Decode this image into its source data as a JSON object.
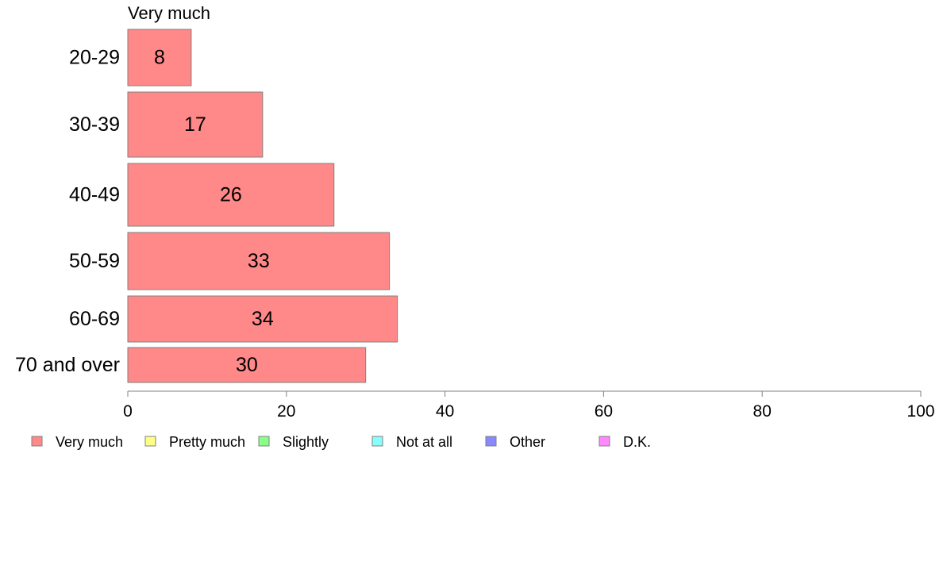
{
  "chart_data": {
    "type": "bar",
    "orientation": "horizontal",
    "series_title": "Very much",
    "categories": [
      "20-29",
      "30-39",
      "40-49",
      "50-59",
      "60-69",
      "70 and over"
    ],
    "series": [
      {
        "name": "Very much",
        "values": [
          8,
          17,
          26,
          33,
          34,
          30
        ]
      }
    ],
    "xlim": [
      0,
      100
    ],
    "xticks": [
      0,
      20,
      40,
      60,
      80,
      100
    ],
    "grid": false,
    "legend_position": "bottom",
    "legend": [
      {
        "label": "Very much",
        "color": "#ff8888"
      },
      {
        "label": "Pretty much",
        "color": "#ffff88"
      },
      {
        "label": "Slightly",
        "color": "#88ff88"
      },
      {
        "label": "Not at all",
        "color": "#88ffff"
      },
      {
        "label": "Other",
        "color": "#8888ff"
      },
      {
        "label": "D.K.",
        "color": "#ff88ff"
      }
    ],
    "bar_color": "#ff8888"
  }
}
